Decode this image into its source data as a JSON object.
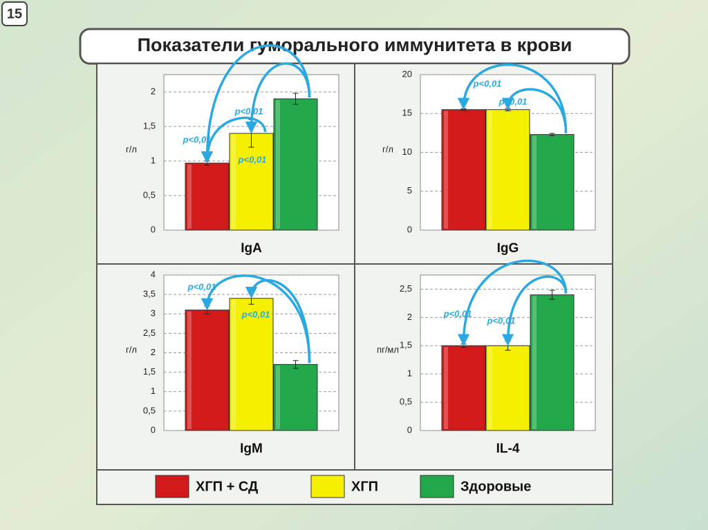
{
  "slide_number": "15",
  "title": "Показатели гуморального иммунитета в крови",
  "legend": {
    "series": [
      {
        "name": "ХГП + СД",
        "color": "#d21a1a"
      },
      {
        "name": "ХГП",
        "color": "#f5f000"
      },
      {
        "name": "Здоровые",
        "color": "#22a84a"
      }
    ]
  },
  "chart_data": [
    {
      "type": "bar",
      "title": "IgA",
      "y_label": "г/л",
      "grid": true,
      "ylim": [
        0,
        2.25
      ],
      "yticks": [
        0,
        {
          "value": 0.5,
          "label": "0,5"
        },
        1,
        {
          "value": 1.5,
          "label": "1,5"
        },
        2
      ],
      "values": [
        0.97,
        1.4,
        1.9
      ],
      "errors": [
        0.03,
        0.2,
        0.08
      ],
      "colors": [
        "#d21a1a",
        "#f5f000",
        "#22a84a"
      ],
      "annotations": [
        "p<0,01",
        "p<0,01",
        "p<0,01"
      ]
    },
    {
      "type": "bar",
      "title": "IgG",
      "y_label": "г/л",
      "grid": true,
      "ylim": [
        0,
        20
      ],
      "yticks": [
        0,
        5,
        10,
        15,
        20
      ],
      "values": [
        15.5,
        15.5,
        12.3
      ],
      "errors": [
        0.1,
        0.15,
        0.15
      ],
      "colors": [
        "#d21a1a",
        "#f5f000",
        "#22a84a"
      ],
      "annotations": [
        "p<0,01",
        "p<0,01"
      ]
    },
    {
      "type": "bar",
      "title": "IgM",
      "y_label": "г/л",
      "grid": true,
      "ylim": [
        0,
        4
      ],
      "yticks": [
        0,
        {
          "value": 0.5,
          "label": "0,5"
        },
        1,
        {
          "value": 1.5,
          "label": "1,5"
        },
        2,
        {
          "value": 2.5,
          "label": "2,5"
        },
        3,
        {
          "value": 3.5,
          "label": "3,5"
        },
        4
      ],
      "values": [
        3.1,
        3.4,
        1.7
      ],
      "errors": [
        0.1,
        0.15,
        0.1
      ],
      "colors": [
        "#d21a1a",
        "#f5f000",
        "#22a84a"
      ],
      "annotations": [
        "p<0,01",
        "p<0,01"
      ]
    },
    {
      "type": "bar",
      "title": "IL-4",
      "y_label": "пг/мл",
      "grid": true,
      "ylim": [
        0,
        2.75
      ],
      "yticks": [
        0,
        {
          "value": 0.5,
          "label": "0,5"
        },
        1,
        {
          "value": 1.5,
          "label": "1,5"
        },
        2,
        {
          "value": 2.5,
          "label": "2,5"
        }
      ],
      "values": [
        1.5,
        1.5,
        2.4
      ],
      "errors": [
        0.03,
        0.08,
        0.08
      ],
      "colors": [
        "#d21a1a",
        "#f5f000",
        "#22a84a"
      ],
      "annotations": [
        "p<0,01",
        "p<0,01"
      ]
    }
  ]
}
